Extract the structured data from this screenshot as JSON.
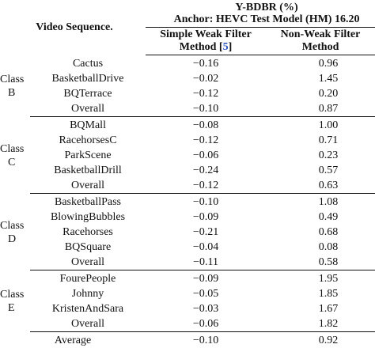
{
  "header": {
    "video_sequence": "Video Sequence.",
    "metric": "Y-BDBR (%)",
    "anchor": "Anchor: HEVC Test Model (HM) 16.20",
    "simple_line1": "Simple Weak Filter",
    "simple_line2_prefix": "Method [",
    "simple_ref": "5",
    "simple_line2_suffix": "]",
    "nonweak_line1": "Non-Weak Filter",
    "nonweak_line2": "Method"
  },
  "groups": [
    {
      "class_word": "Class",
      "class_letter": "B",
      "rows": [
        {
          "seq": "Cactus",
          "simple": "−0.16",
          "nonweak": "0.96"
        },
        {
          "seq": "BasketballDrive",
          "simple": "−0.02",
          "nonweak": "1.45"
        },
        {
          "seq": "BQTerrace",
          "simple": "−0.12",
          "nonweak": "0.20"
        },
        {
          "seq": "Overall",
          "simple": "−0.10",
          "nonweak": "0.87"
        }
      ]
    },
    {
      "class_word": "Class",
      "class_letter": "C",
      "rows": [
        {
          "seq": "BQMall",
          "simple": "−0.08",
          "nonweak": "1.00"
        },
        {
          "seq": "RacehorsesC",
          "simple": "−0.12",
          "nonweak": "0.71"
        },
        {
          "seq": "ParkScene",
          "simple": "−0.06",
          "nonweak": "0.23"
        },
        {
          "seq": "BasketballDrill",
          "simple": "−0.24",
          "nonweak": "0.57"
        },
        {
          "seq": "Overall",
          "simple": "−0.12",
          "nonweak": "0.63"
        }
      ]
    },
    {
      "class_word": "Class",
      "class_letter": "D",
      "rows": [
        {
          "seq": "BasketballPass",
          "simple": "−0.10",
          "nonweak": "1.08"
        },
        {
          "seq": "BlowingBubbles",
          "simple": "−0.09",
          "nonweak": "0.49"
        },
        {
          "seq": "Racehorses",
          "simple": "−0.21",
          "nonweak": "0.68"
        },
        {
          "seq": "BQSquare",
          "simple": "−0.04",
          "nonweak": "0.08"
        },
        {
          "seq": "Overall",
          "simple": "−0.11",
          "nonweak": "0.58"
        }
      ]
    },
    {
      "class_word": "Class",
      "class_letter": "E",
      "rows": [
        {
          "seq": "FourePeople",
          "simple": "−0.09",
          "nonweak": "1.95"
        },
        {
          "seq": "Johnny",
          "simple": "−0.05",
          "nonweak": "1.85"
        },
        {
          "seq": "KristenAndSara",
          "simple": "−0.03",
          "nonweak": "1.67"
        },
        {
          "seq": "Overall",
          "simple": "−0.06",
          "nonweak": "1.82"
        }
      ]
    }
  ],
  "average": {
    "label": "Average",
    "simple": "−0.10",
    "nonweak": "0.92"
  }
}
